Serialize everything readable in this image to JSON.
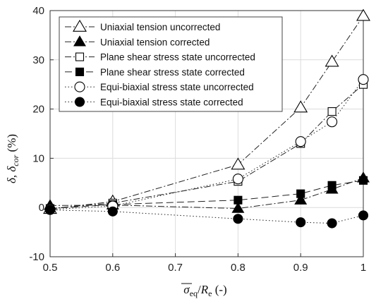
{
  "chart_data": {
    "type": "line",
    "xlim": [
      0.5,
      1.0
    ],
    "ylim": [
      -10,
      40
    ],
    "x_ticks": [
      "0.5",
      "0.6",
      "0.7",
      "0.8",
      "0.9",
      "1"
    ],
    "y_ticks": [
      "-10",
      "0",
      "10",
      "20",
      "30",
      "40"
    ],
    "grid": true,
    "legend_position": "top-left",
    "xlabel": "σ̄eq/Re (-)",
    "ylabel": "δ, δcor (%)",
    "series": [
      {
        "name": "Uniaxial tension uncorrected",
        "marker": "triangle-open",
        "line": "dashdot",
        "x": [
          0.5,
          0.6,
          0.8,
          0.9,
          0.95,
          1.0
        ],
        "y": [
          -0.3,
          1.2,
          8.7,
          20.3,
          29.6,
          38.9
        ]
      },
      {
        "name": "Uniaxial tension corrected",
        "marker": "triangle-filled",
        "line": "dashdot",
        "x": [
          0.5,
          0.6,
          0.8,
          0.9,
          0.95,
          1.0
        ],
        "y": [
          0.4,
          0.5,
          -0.2,
          1.5,
          3.7,
          6.0
        ]
      },
      {
        "name": "Plane shear stress state uncorrected",
        "marker": "square-open",
        "line": "dashdot",
        "x": [
          0.5,
          0.6,
          0.8,
          0.9,
          0.95,
          1.0
        ],
        "y": [
          -0.2,
          0.9,
          5.3,
          13.0,
          19.5,
          25.0
        ]
      },
      {
        "name": "Plane shear stress state corrected",
        "marker": "square-filled",
        "line": "dashed",
        "x": [
          0.5,
          0.6,
          0.8,
          0.9,
          0.95,
          1.0
        ],
        "y": [
          -0.2,
          0.6,
          1.5,
          2.8,
          4.5,
          5.5
        ]
      },
      {
        "name": "Equi-biaxial stress state uncorrected",
        "marker": "circle-open",
        "line": "dotted",
        "x": [
          0.5,
          0.6,
          0.8,
          0.9,
          0.95,
          1.0
        ],
        "y": [
          -0.4,
          0.3,
          5.8,
          13.4,
          17.4,
          26.0
        ]
      },
      {
        "name": "Equi-biaxial stress state corrected",
        "marker": "circle-filled",
        "line": "dotted",
        "x": [
          0.5,
          0.6,
          0.8,
          0.9,
          0.95,
          1.0
        ],
        "y": [
          -0.5,
          -0.8,
          -2.3,
          -3.0,
          -3.2,
          -1.6
        ]
      }
    ]
  }
}
